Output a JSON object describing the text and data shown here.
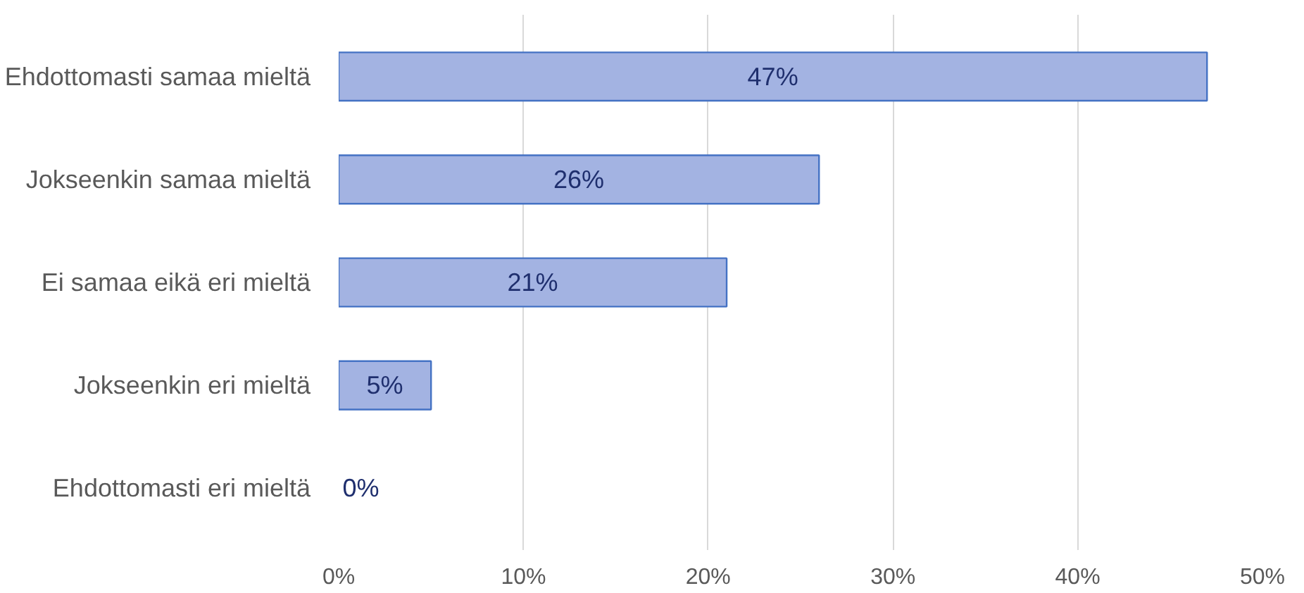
{
  "chart_data": {
    "type": "bar",
    "orientation": "horizontal",
    "categories": [
      "Ehdottomasti samaa mieltä",
      "Jokseenkin samaa mieltä",
      "Ei samaa eikä eri mieltä",
      "Jokseenkin eri mieltä",
      "Ehdottomasti eri mieltä"
    ],
    "values": [
      47,
      26,
      21,
      5,
      0
    ],
    "value_labels": [
      "47%",
      "26%",
      "21%",
      "5%",
      "0%"
    ],
    "color": "#a3b3e2",
    "xlim": [
      0,
      50
    ],
    "xticks": [
      {
        "value": 0,
        "label": "0%"
      },
      {
        "value": 10,
        "label": "10%"
      },
      {
        "value": 20,
        "label": "20%"
      },
      {
        "value": 30,
        "label": "30%"
      },
      {
        "value": 40,
        "label": "40%"
      },
      {
        "value": 50,
        "label": "50%"
      }
    ],
    "grid": "x"
  }
}
